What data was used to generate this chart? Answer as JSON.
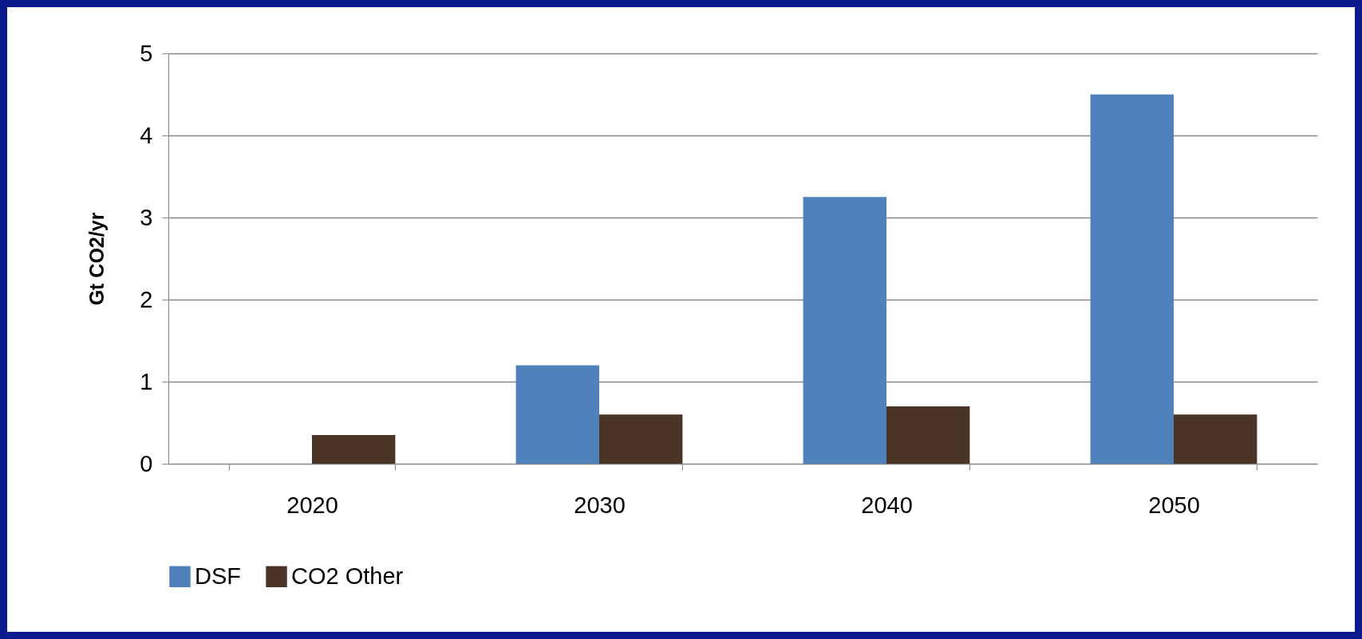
{
  "chart_data": {
    "type": "bar",
    "ylabel": "Gt CO2/yr",
    "categories": [
      "2020",
      "2030",
      "2040",
      "2050"
    ],
    "series": [
      {
        "name": "DSF",
        "color": "#4f81bd",
        "values": [
          0,
          1.2,
          3.25,
          4.5
        ]
      },
      {
        "name": "CO2 Other",
        "color": "#4a3426",
        "values": [
          0.35,
          0.6,
          0.7,
          0.6
        ]
      }
    ],
    "ylim": [
      0,
      5
    ],
    "yticks": [
      0,
      1,
      2,
      3,
      4,
      5
    ],
    "grid": "y",
    "legend": "bottom"
  }
}
